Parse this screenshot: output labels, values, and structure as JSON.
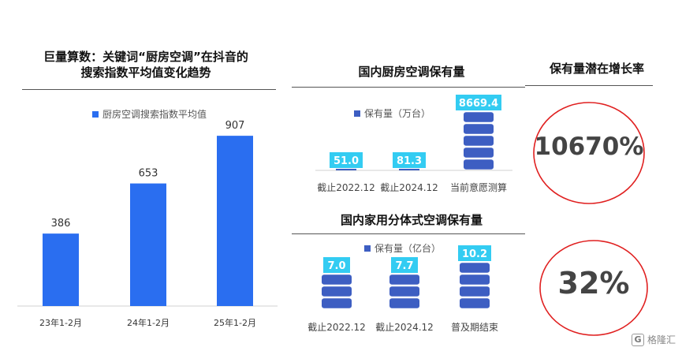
{
  "left_chart": {
    "title_line1": "巨量算数：关键词“厨房空调”在抖音的",
    "title_line2": "搜索指数平均值变化趋势",
    "legend": "厨房空调搜索指数平均值"
  },
  "mid_top": {
    "title": "国内厨房空调保有量",
    "legend": "保有量（万台）"
  },
  "mid_bottom": {
    "title": "国内家用分体式空调保有量",
    "legend": "保有量（亿台）"
  },
  "right": {
    "title": "保有量潜在增长率",
    "pct_top": "10670%",
    "pct_bottom": "32%"
  },
  "watermark": {
    "glyph": "G",
    "text": "格隆汇"
  },
  "colors": {
    "bar_blue": "#2a6ef0",
    "stack_blue": "#3d5ec2",
    "label_cyan": "#33ccf2",
    "circle_red": "#e02020"
  },
  "chart_data": [
    {
      "type": "bar",
      "title": "巨量算数：关键词“厨房空调”在抖音的搜索指数平均值变化趋势",
      "categories": [
        "23年1-2月",
        "24年1-2月",
        "25年1-2月"
      ],
      "series": [
        {
          "name": "厨房空调搜索指数平均值",
          "values": [
            386,
            653,
            907
          ]
        }
      ],
      "ylim": [
        0,
        1000
      ],
      "grid": false,
      "legend": "top"
    },
    {
      "type": "bar",
      "title": "国内厨房空调保有量",
      "categories": [
        "截止2022.12",
        "截止2024.12",
        "当前意愿测算"
      ],
      "series": [
        {
          "name": "保有量（万台）",
          "values": [
            51.0,
            81.3,
            8669.4
          ]
        }
      ],
      "value_labels": [
        "51.0",
        "81.3",
        "8669.4"
      ],
      "legend": "top"
    },
    {
      "type": "bar",
      "title": "国内家用分体式空调保有量",
      "categories": [
        "截止2022.12",
        "截止2024.12",
        "普及期结束"
      ],
      "series": [
        {
          "name": "保有量（亿台）",
          "values": [
            7.0,
            7.7,
            10.2
          ]
        }
      ],
      "value_labels": [
        "7.0",
        "7.7",
        "10.2"
      ],
      "legend": "top"
    }
  ]
}
